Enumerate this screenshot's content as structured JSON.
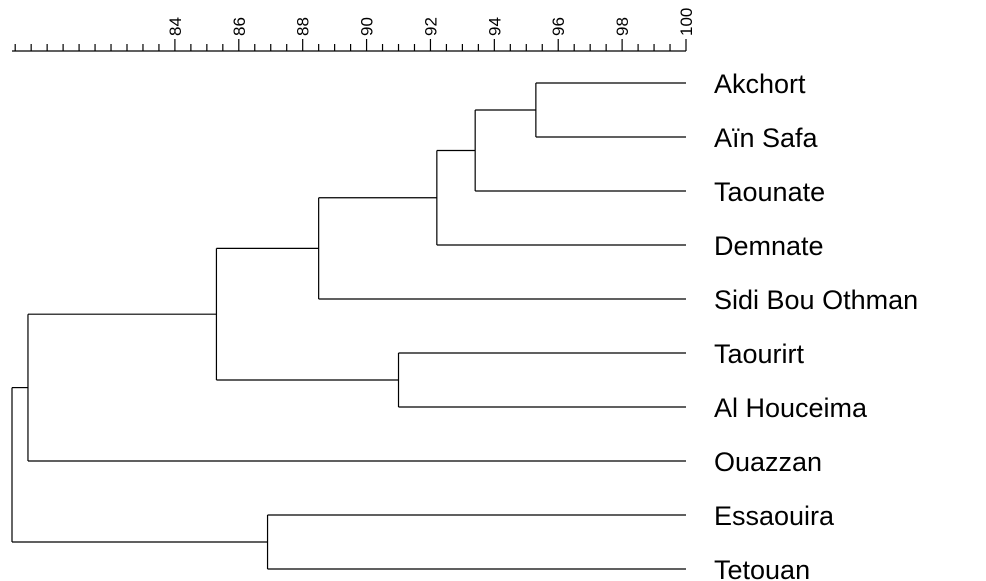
{
  "dendrogram": {
    "axis": {
      "min": 78.9,
      "max": 100,
      "major_ticks": [
        84,
        86,
        88,
        90,
        92,
        94,
        96,
        98,
        100
      ],
      "major_tick_labels": [
        "84",
        "86",
        "88",
        "90",
        "92",
        "94",
        "96",
        "98",
        "100"
      ],
      "minor_step": 0.5
    },
    "leaves": [
      "Akchort",
      "Aïn Safa",
      "Taounate",
      "Demnate",
      "Sidi Bou Othman",
      "Taourirt",
      "Al Houceima",
      "Ouazzan",
      "Essaouira",
      "Tetouan"
    ],
    "merges": [
      {
        "a": 0,
        "b": 1,
        "similarity": 95.3
      },
      {
        "a": 10,
        "b": 2,
        "similarity": 93.4
      },
      {
        "a": 11,
        "b": 3,
        "similarity": 92.2
      },
      {
        "a": 12,
        "b": 4,
        "similarity": 88.5
      },
      {
        "a": 5,
        "b": 6,
        "similarity": 91.0
      },
      {
        "a": 13,
        "b": 14,
        "similarity": 85.3
      },
      {
        "a": 15,
        "b": 7,
        "similarity": 79.4
      },
      {
        "a": 8,
        "b": 9,
        "similarity": 86.9
      },
      {
        "a": 16,
        "b": 17,
        "similarity": 78.9
      }
    ]
  }
}
